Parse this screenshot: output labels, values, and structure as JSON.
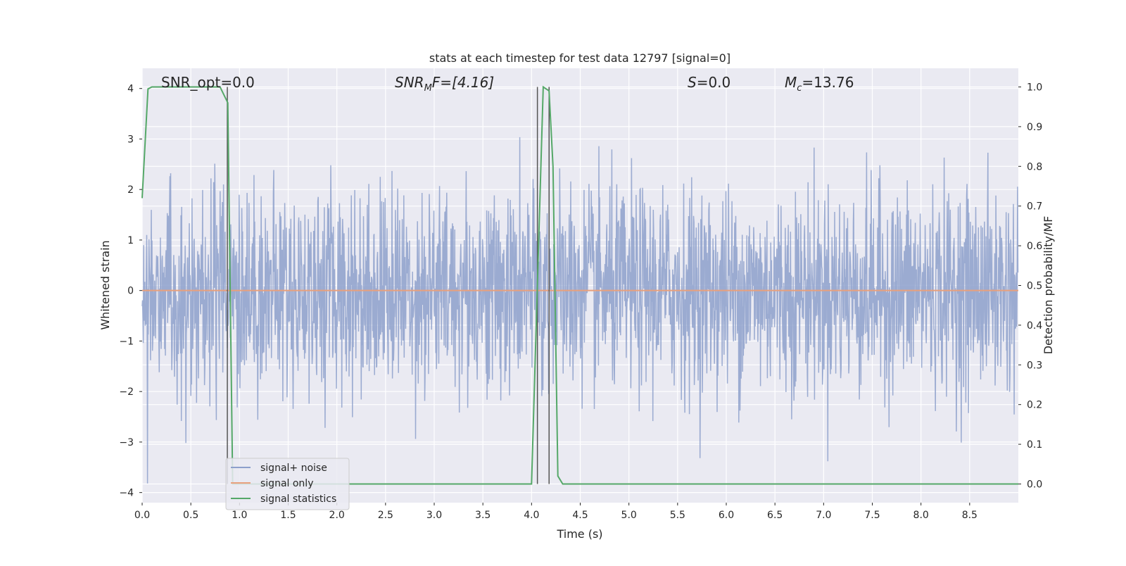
{
  "chart_data": {
    "type": "line",
    "title": "stats at each timestep for test data 12797 [signal=0]",
    "xlabel": "Time (s)",
    "ylabel": "Whitened strain",
    "y2label": "Detection probability/MF",
    "xlim": [
      0.0,
      9.0
    ],
    "ylim": [
      -4.2,
      4.4
    ],
    "y2lim": [
      -0.047,
      1.047
    ],
    "x_ticks": [
      0.0,
      0.5,
      1.0,
      1.5,
      2.0,
      2.5,
      3.0,
      3.5,
      4.0,
      4.5,
      5.0,
      5.5,
      6.0,
      6.5,
      7.0,
      7.5,
      8.0,
      8.5
    ],
    "x_tick_labels": [
      "0.0",
      "0.5",
      "1.0",
      "1.5",
      "2.0",
      "2.5",
      "3.0",
      "3.5",
      "4.0",
      "4.5",
      "5.0",
      "5.5",
      "6.0",
      "6.5",
      "7.0",
      "7.5",
      "8.0",
      "8.5"
    ],
    "y_ticks": [
      4,
      3,
      2,
      1,
      0,
      -1,
      -2,
      -3,
      -4
    ],
    "y_tick_labels": [
      "4",
      "3",
      "2",
      "1",
      "0",
      "−1",
      "−2",
      "−3",
      "−4"
    ],
    "y2_ticks": [
      1.0,
      0.9,
      0.8,
      0.7,
      0.6,
      0.5,
      0.4,
      0.3,
      0.2,
      0.1,
      0.0
    ],
    "y2_tick_labels": [
      "1.0",
      "0.9",
      "0.8",
      "0.7",
      "0.6",
      "0.5",
      "0.4",
      "0.3",
      "0.2",
      "0.1",
      "0.0"
    ],
    "grid": true,
    "legend_position": "lower-left",
    "annotations": {
      "snr_opt": "SNR_opt=0.0",
      "snr_mf_prefix": "SNR",
      "snr_mf_sub": "M",
      "snr_mf_suffix": "F=[4.16]",
      "s_prefix": "S",
      "s_suffix": "=0.0",
      "mc_prefix": "M",
      "mc_sub": "c",
      "mc_suffix": "=13.76"
    },
    "series": [
      {
        "name": "signal+ noise",
        "color": "#8da0cb",
        "kind": "noise",
        "sample_rate": 256,
        "duration": 9.0,
        "sigma": 1.0,
        "clip": [
          -3.9,
          4.0
        ]
      },
      {
        "name": "signal only",
        "color": "#e8a07c",
        "x": [
          0.0,
          9.0
        ],
        "y": [
          0.0,
          0.0
        ]
      },
      {
        "name": "signal statistics",
        "color": "#55a868",
        "axis": "right",
        "x": [
          0.0,
          0.06,
          0.1,
          0.2,
          0.3,
          0.5,
          0.7,
          0.8,
          0.88,
          0.93,
          1.0,
          1.5,
          2.0,
          3.0,
          3.9,
          4.0,
          4.06,
          4.12,
          4.18,
          4.22,
          4.27,
          4.32,
          4.5,
          5.0,
          6.0,
          7.0,
          8.0,
          9.0
        ],
        "y": [
          0.72,
          0.995,
          1.0,
          1.0,
          1.0,
          1.0,
          1.0,
          1.0,
          0.96,
          0.0,
          0.0,
          0.0,
          0.0,
          0.0,
          0.0,
          0.0,
          0.5,
          1.0,
          0.99,
          0.8,
          0.02,
          0.0,
          0.0,
          0.0,
          0.0,
          0.0,
          0.0,
          0.0
        ]
      }
    ],
    "marker_lines": [
      {
        "x": 0.875,
        "color": "#555555"
      },
      {
        "x": 4.06,
        "color": "#555555"
      },
      {
        "x": 4.18,
        "color": "#555555"
      }
    ]
  }
}
